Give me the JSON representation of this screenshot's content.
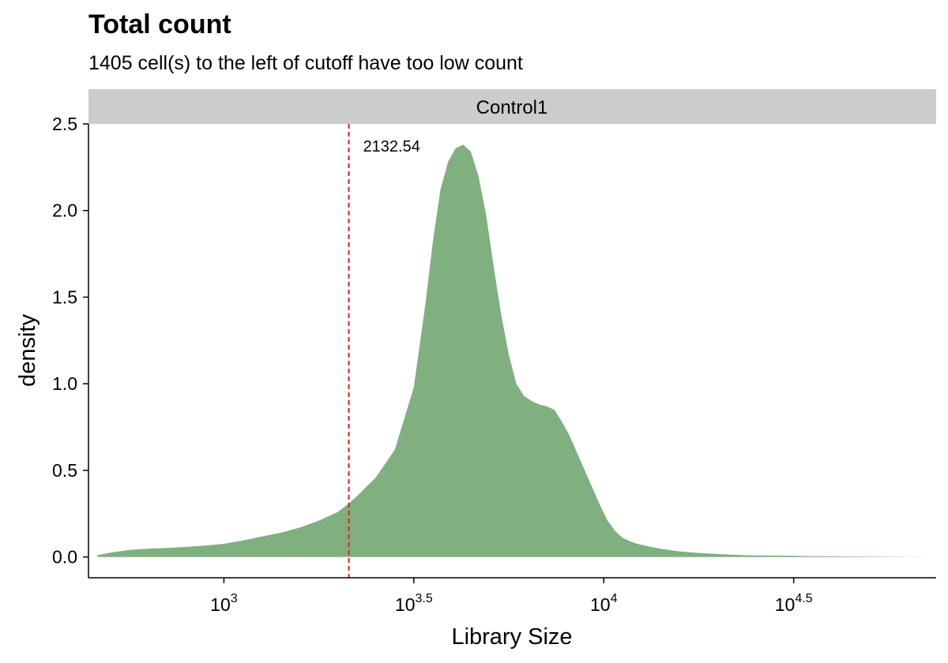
{
  "chart_data": {
    "type": "area",
    "title": "Total count",
    "subtitle": "1405 cell(s) to the left of cutoff have too low count",
    "facet_label": "Control1",
    "xlabel": "Library Size",
    "ylabel": "density",
    "x_scale": "log10",
    "xlim": [
      440,
      75000
    ],
    "ylim": [
      -0.12,
      2.5
    ],
    "x_ticks": [
      {
        "value": 1000,
        "base": "10",
        "exp": "3"
      },
      {
        "value": 3162.28,
        "base": "10",
        "exp": "3.5"
      },
      {
        "value": 10000,
        "base": "10",
        "exp": "4"
      },
      {
        "value": 31622.78,
        "base": "10",
        "exp": "4.5"
      }
    ],
    "y_ticks": [
      {
        "value": 0,
        "label": "0.0"
      },
      {
        "value": 0.5,
        "label": "0.5"
      },
      {
        "value": 1.0,
        "label": "1.0"
      },
      {
        "value": 1.5,
        "label": "1.5"
      },
      {
        "value": 2.0,
        "label": "2.0"
      },
      {
        "value": 2.5,
        "label": "2.5"
      }
    ],
    "cutoff": {
      "value": 2132.54,
      "label": "2132.54",
      "color": "#e41a1c"
    },
    "fill_color": "#80b080",
    "series": [
      {
        "x": [
          464,
          501,
          562,
          631,
          708,
          794,
          891,
          1000,
          1122,
          1259,
          1413,
          1585,
          1778,
          1995,
          2132.54,
          2239,
          2512,
          2818,
          3162,
          3388,
          3548,
          3715,
          3890,
          4074,
          4266,
          4467,
          4677,
          4898,
          5129,
          5370,
          5623,
          5888,
          6166,
          6457,
          6761,
          7080,
          7413,
          7762,
          8128,
          8511,
          8913,
          9333,
          9772,
          10233,
          10715,
          11220,
          11749,
          12303,
          13183,
          14125,
          15849,
          17783,
          19953,
          22387,
          25119,
          28184,
          31623,
          35481,
          39811,
          44668,
          50119,
          56234,
          63096,
          70795
        ],
        "y": [
          0.01,
          0.025,
          0.04,
          0.048,
          0.052,
          0.058,
          0.066,
          0.076,
          0.095,
          0.118,
          0.14,
          0.17,
          0.21,
          0.26,
          0.31,
          0.35,
          0.46,
          0.62,
          0.98,
          1.45,
          1.82,
          2.12,
          2.28,
          2.36,
          2.38,
          2.34,
          2.2,
          1.98,
          1.68,
          1.4,
          1.17,
          1.0,
          0.93,
          0.9,
          0.88,
          0.87,
          0.85,
          0.78,
          0.7,
          0.6,
          0.5,
          0.4,
          0.3,
          0.21,
          0.15,
          0.11,
          0.09,
          0.075,
          0.06,
          0.047,
          0.032,
          0.023,
          0.017,
          0.012,
          0.009,
          0.008,
          0.007,
          0.005,
          0.004,
          0.003,
          0.002,
          0.001,
          0.0005,
          0.0002
        ]
      }
    ]
  }
}
